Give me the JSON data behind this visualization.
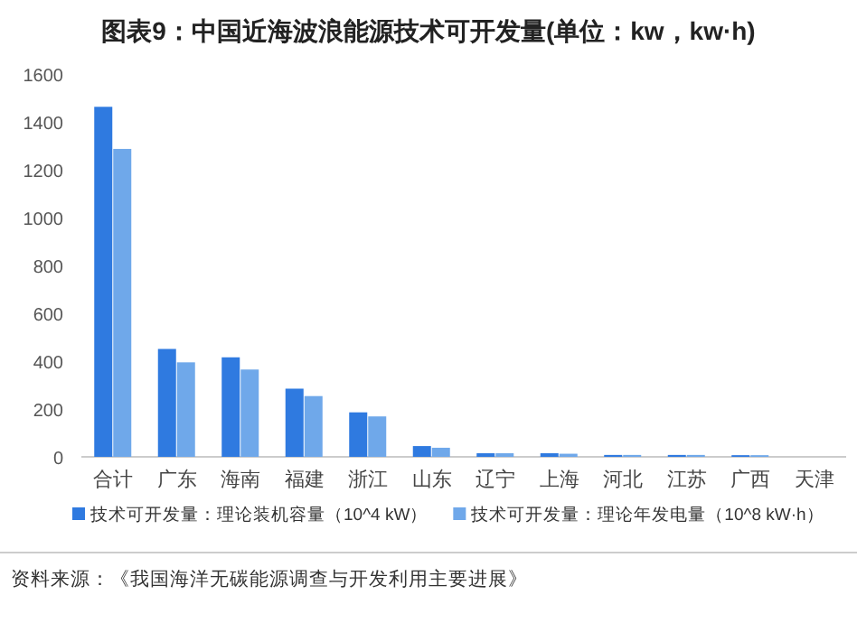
{
  "chart_data": {
    "type": "bar",
    "title": "图表9：中国近海波浪能源技术可开发量(单位：kw，kw·h)",
    "categories": [
      "合计",
      "广东",
      "海南",
      "福建",
      "浙江",
      "山东",
      "辽宁",
      "上海",
      "河北",
      "江苏",
      "广西",
      "天津"
    ],
    "series": [
      {
        "name": "技术可开发量：理论装机容量（10^4 kW）",
        "color": "#2f7ae0",
        "values": [
          1463,
          451,
          416,
          285,
          186,
          45,
          15,
          15,
          8,
          8,
          7,
          0
        ]
      },
      {
        "name": "技术可开发量：理论年发电量（10^8 kW·h）",
        "color": "#6fa8ea",
        "values": [
          1287,
          395,
          365,
          254,
          169,
          38,
          15,
          13,
          8,
          8,
          7,
          0
        ]
      }
    ],
    "ylim": [
      0,
      1600
    ],
    "yticks": [
      0,
      200,
      400,
      600,
      800,
      1000,
      1200,
      1400,
      1600
    ],
    "legend": "bottom",
    "annotations": [
      "资料来源：《我国海洋无碳能源调查与开发利用主要进展》"
    ]
  }
}
